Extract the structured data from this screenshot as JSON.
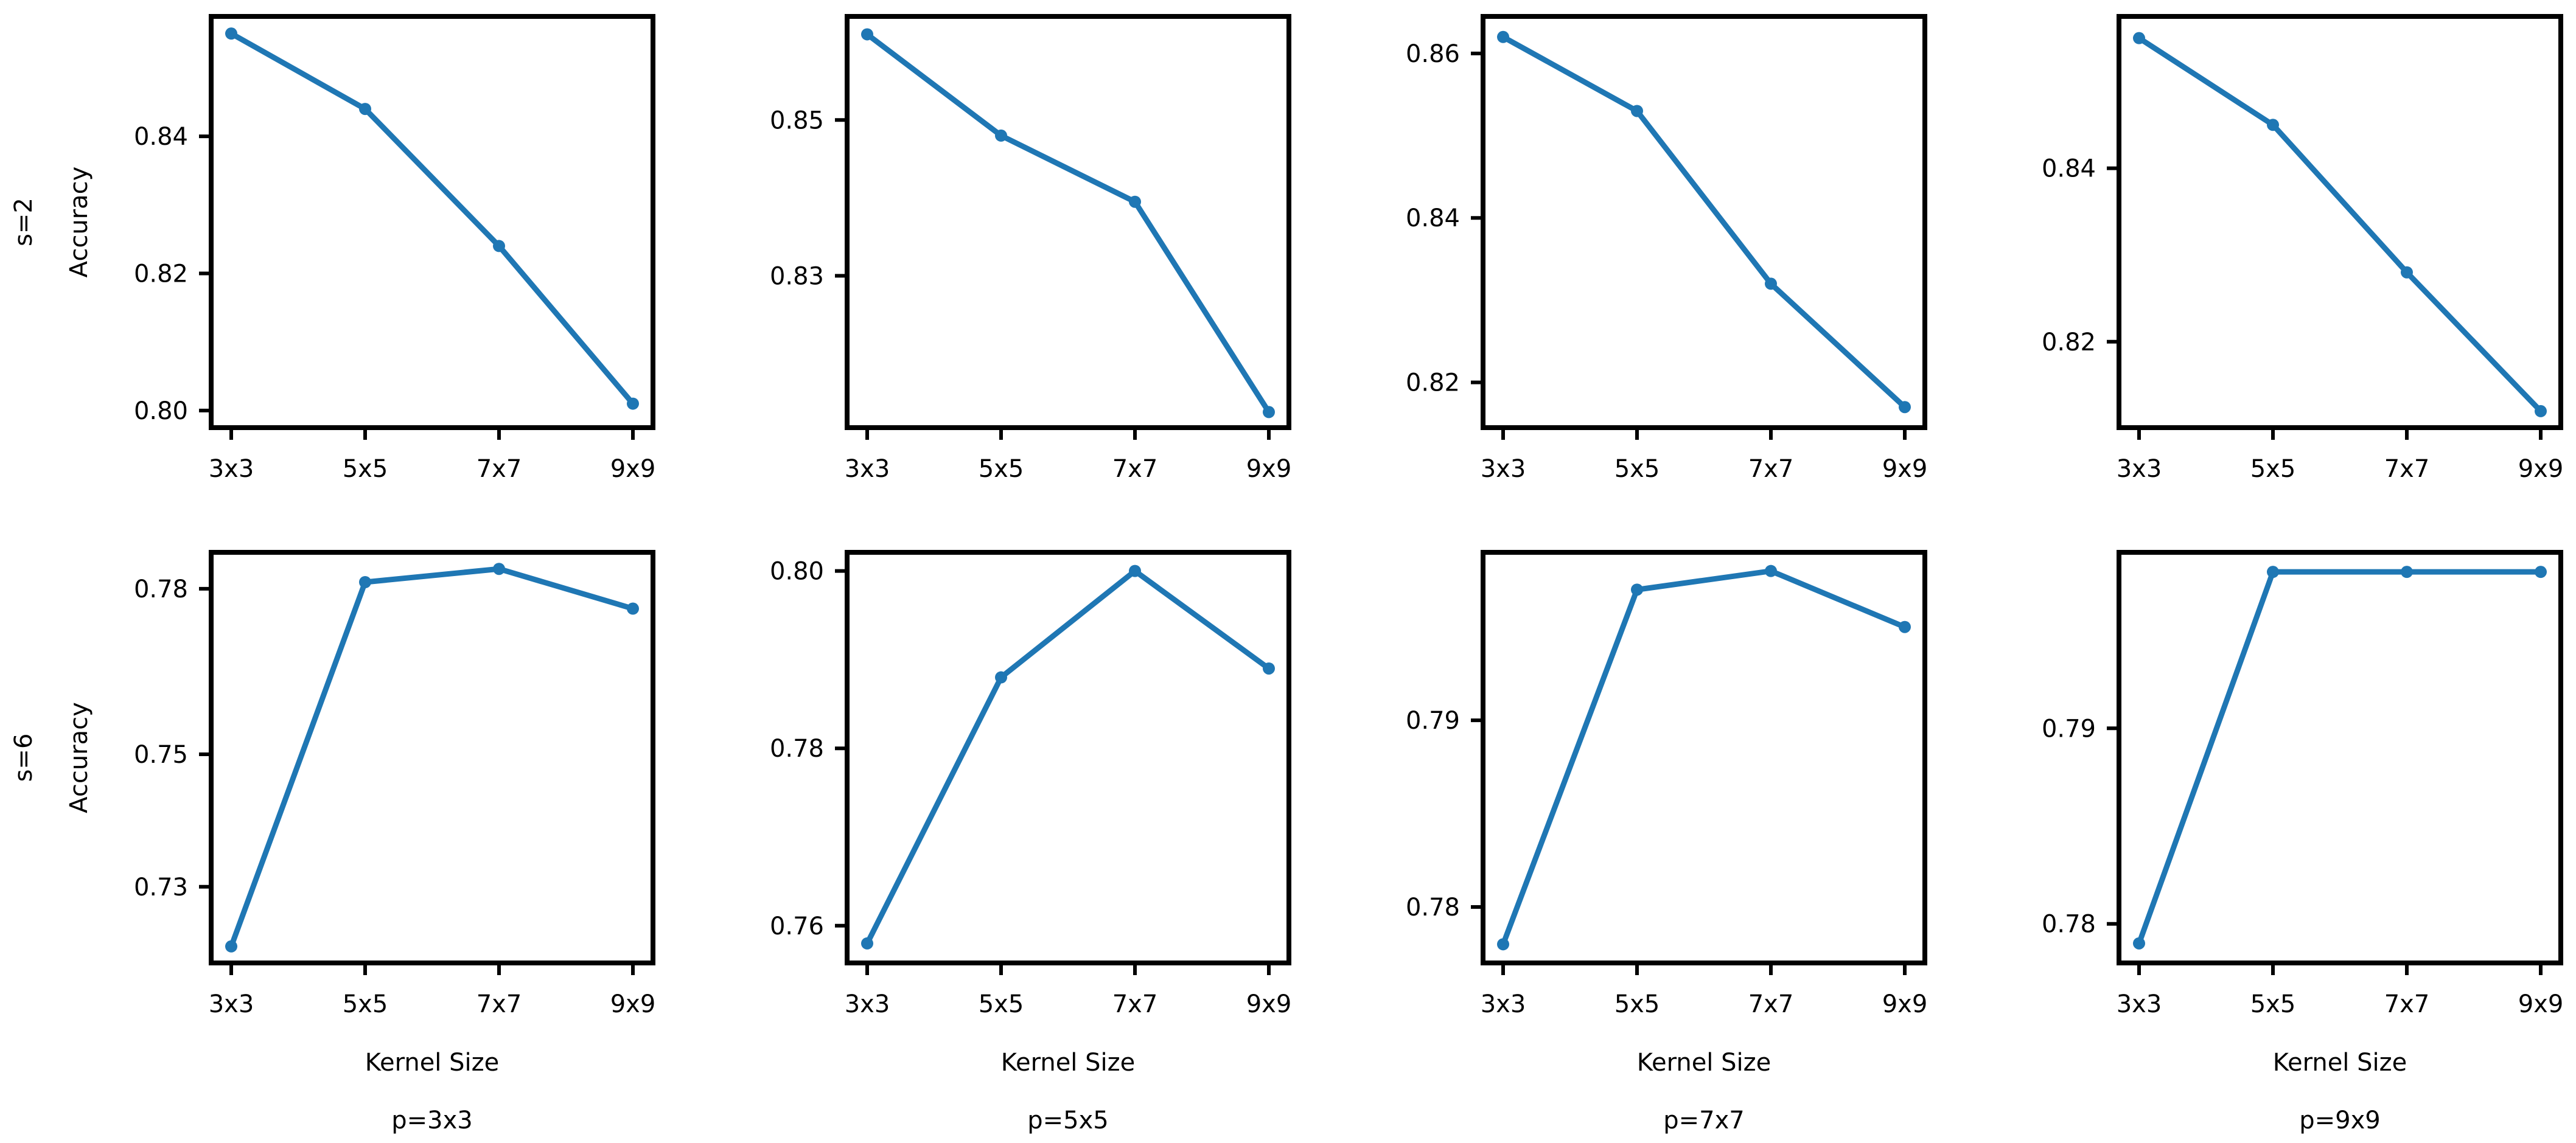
{
  "figure": {
    "row_labels": [
      "s=2",
      "s=6"
    ],
    "column_labels": [
      "p=3x3",
      "p=5x5",
      "p=7x7",
      "p=9x9"
    ],
    "ylabel": "Accuracy",
    "xlabel": "Kernel Size",
    "line_color": "#1f77b4"
  },
  "chart_data": [
    {
      "type": "line",
      "row": 0,
      "col": 0,
      "categories": [
        "3x3",
        "5x5",
        "7x7",
        "9x9"
      ],
      "values": [
        0.855,
        0.844,
        0.824,
        0.801
      ],
      "ylim": [
        0.7975,
        0.8575
      ],
      "yticks": [
        0.8,
        0.82,
        0.84
      ],
      "ytick_labels": [
        "0.80",
        "0.82",
        "0.84"
      ],
      "ylabel": "Accuracy",
      "xlabel": "",
      "row_label": "s=2",
      "col_label": ""
    },
    {
      "type": "line",
      "row": 0,
      "col": 1,
      "categories": [
        "3x3",
        "5x5",
        "7x7",
        "9x9"
      ],
      "values": [
        0.861,
        0.848,
        0.8395,
        0.8125
      ],
      "ylim": [
        0.8105,
        0.8633
      ],
      "yticks": [
        0.83,
        0.85
      ],
      "ytick_labels": [
        "0.83",
        "0.85"
      ],
      "ylabel": "",
      "xlabel": "",
      "row_label": "",
      "col_label": ""
    },
    {
      "type": "line",
      "row": 0,
      "col": 2,
      "categories": [
        "3x3",
        "5x5",
        "7x7",
        "9x9"
      ],
      "values": [
        0.862,
        0.853,
        0.832,
        0.817
      ],
      "ylim": [
        0.8145,
        0.8645
      ],
      "yticks": [
        0.82,
        0.84,
        0.86
      ],
      "ytick_labels": [
        "0.82",
        "0.84",
        "0.86"
      ],
      "ylabel": "",
      "xlabel": "",
      "row_label": "",
      "col_label": ""
    },
    {
      "type": "line",
      "row": 0,
      "col": 3,
      "categories": [
        "3x3",
        "5x5",
        "7x7",
        "9x9"
      ],
      "values": [
        0.855,
        0.845,
        0.828,
        0.812
      ],
      "ylim": [
        0.8101,
        0.8575
      ],
      "yticks": [
        0.82,
        0.84
      ],
      "ytick_labels": [
        "0.82",
        "0.84"
      ],
      "ylabel": "",
      "xlabel": "",
      "row_label": "",
      "col_label": ""
    },
    {
      "type": "line",
      "row": 1,
      "col": 0,
      "categories": [
        "3x3",
        "5x5",
        "7x7",
        "9x9"
      ],
      "values": [
        0.721,
        0.776,
        0.778,
        0.772
      ],
      "ylim": [
        0.7185,
        0.7805
      ],
      "yticks": [
        0.73,
        0.75,
        0.775
      ],
      "ytick_labels": [
        "0.73",
        "0.75",
        "0.78"
      ],
      "ylabel": "Accuracy",
      "xlabel": "Kernel Size",
      "row_label": "s=6",
      "col_label": "p=3x3"
    },
    {
      "type": "line",
      "row": 1,
      "col": 1,
      "categories": [
        "3x3",
        "5x5",
        "7x7",
        "9x9"
      ],
      "values": [
        0.758,
        0.788,
        0.8,
        0.789
      ],
      "ylim": [
        0.7558,
        0.8021
      ],
      "yticks": [
        0.76,
        0.78,
        0.8
      ],
      "ytick_labels": [
        "0.76",
        "0.78",
        "0.80"
      ],
      "ylabel": "",
      "xlabel": "Kernel Size",
      "row_label": "",
      "col_label": "p=5x5"
    },
    {
      "type": "line",
      "row": 1,
      "col": 2,
      "categories": [
        "3x3",
        "5x5",
        "7x7",
        "9x9"
      ],
      "values": [
        0.778,
        0.797,
        0.798,
        0.795
      ],
      "ylim": [
        0.777,
        0.799
      ],
      "yticks": [
        0.78,
        0.79
      ],
      "ytick_labels": [
        "0.78",
        "0.79"
      ],
      "ylabel": "",
      "xlabel": "Kernel Size",
      "row_label": "",
      "col_label": "p=7x7"
    },
    {
      "type": "line",
      "row": 1,
      "col": 3,
      "categories": [
        "3x3",
        "5x5",
        "7x7",
        "9x9"
      ],
      "values": [
        0.779,
        0.798,
        0.798,
        0.798
      ],
      "ylim": [
        0.778,
        0.799
      ],
      "yticks": [
        0.78,
        0.79
      ],
      "ytick_labels": [
        "0.78",
        "0.79"
      ],
      "ylabel": "",
      "xlabel": "Kernel Size",
      "row_label": "",
      "col_label": "p=9x9"
    }
  ]
}
